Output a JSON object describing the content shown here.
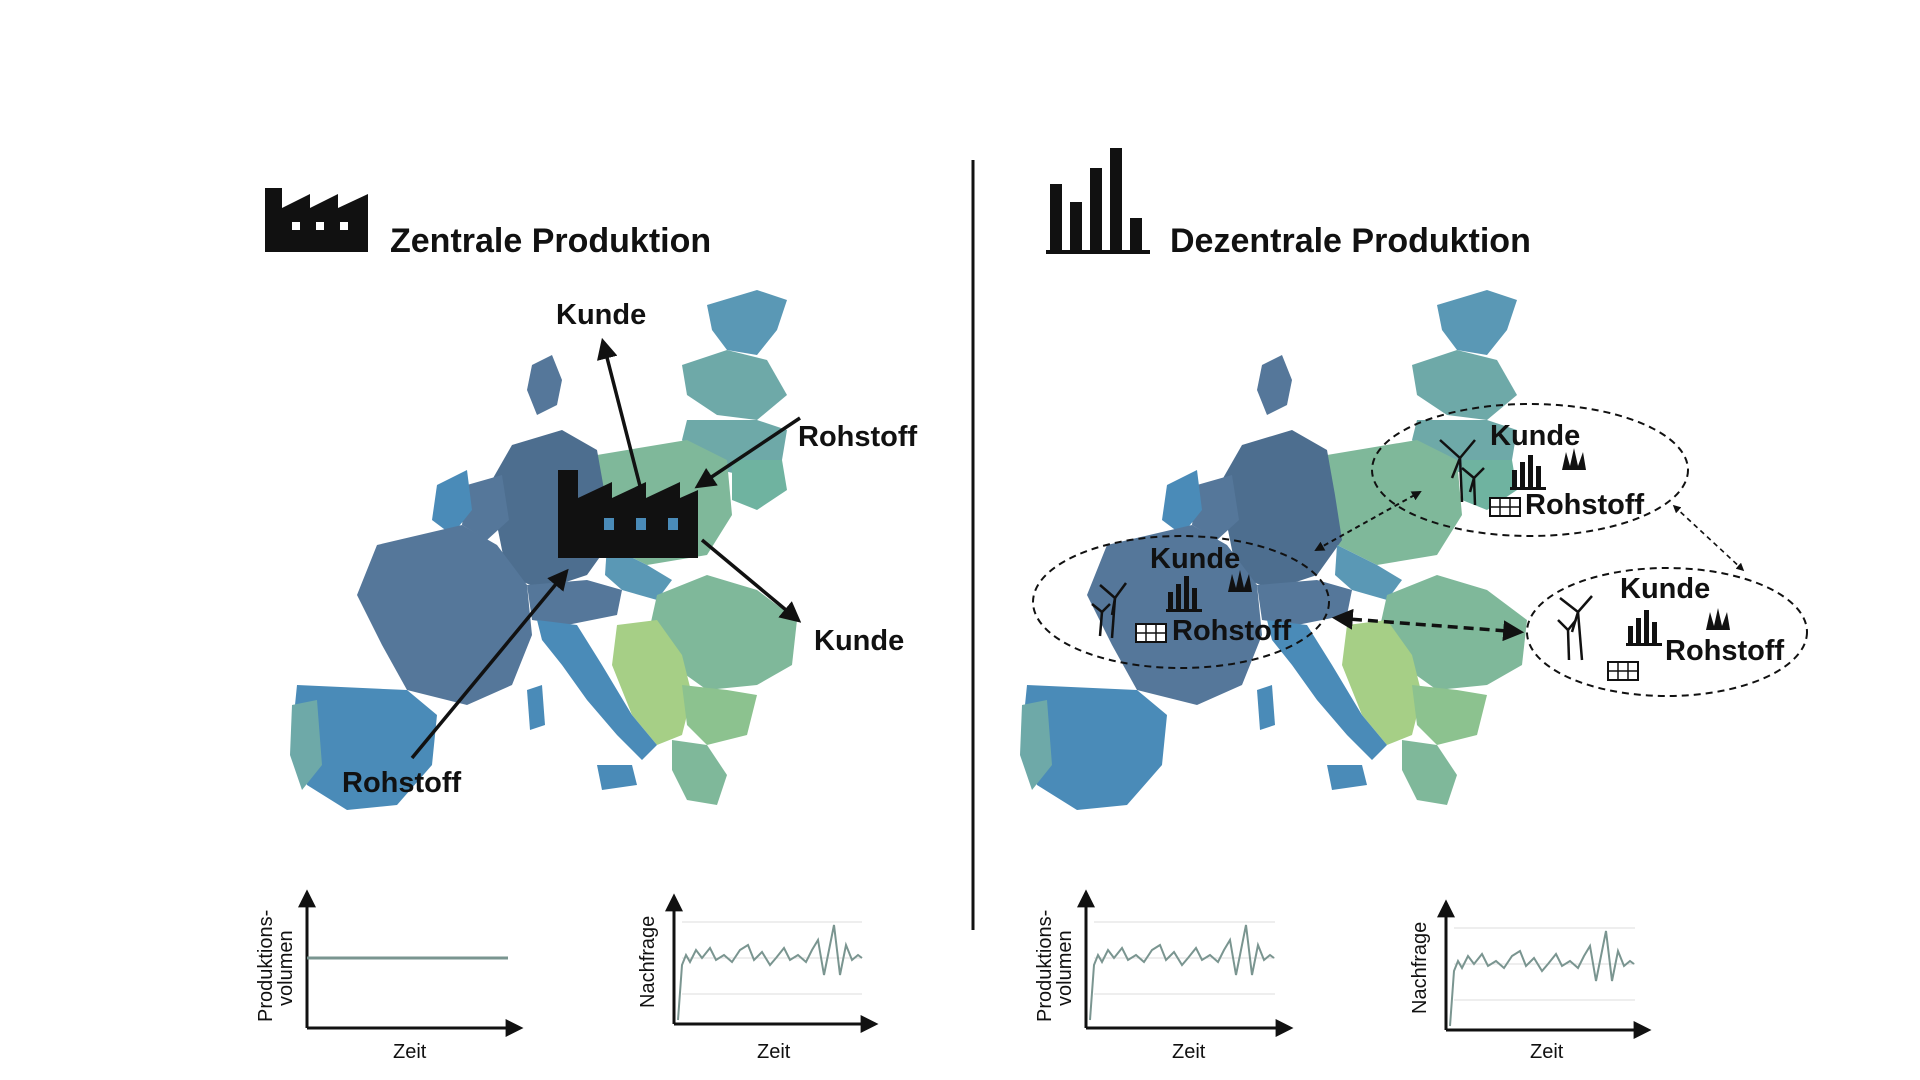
{
  "left": {
    "title": "Zentrale Produktion",
    "icon": "factory-icon",
    "labels": {
      "kunde_north": "Kunde",
      "rohstoff_east": "Rohstoff",
      "kunde_southeast": "Kunde",
      "rohstoff_southwest": "Rohstoff"
    },
    "chart_production": {
      "ylabel_1": "Produktions-",
      "ylabel_2": "volumen",
      "xlabel": "Zeit"
    },
    "chart_demand": {
      "ylabel": "Nachfrage",
      "xlabel": "Zeit"
    }
  },
  "right": {
    "title": "Dezentrale Produktion",
    "icon": "bar-chart-icon",
    "regions": [
      {
        "kunde": "Kunde",
        "rohstoff": "Rohstoff"
      },
      {
        "kunde": "Kunde",
        "rohstoff": "Rohstoff"
      },
      {
        "kunde": "Kunde",
        "rohstoff": "Rohstoff"
      }
    ],
    "chart_production": {
      "ylabel_1": "Produktions-",
      "ylabel_2": "volumen",
      "xlabel": "Zeit"
    },
    "chart_demand": {
      "ylabel": "Nachfrage",
      "xlabel": "Zeit"
    }
  },
  "colors": {
    "divider": "#111111",
    "trend_line": "#7a9590"
  }
}
